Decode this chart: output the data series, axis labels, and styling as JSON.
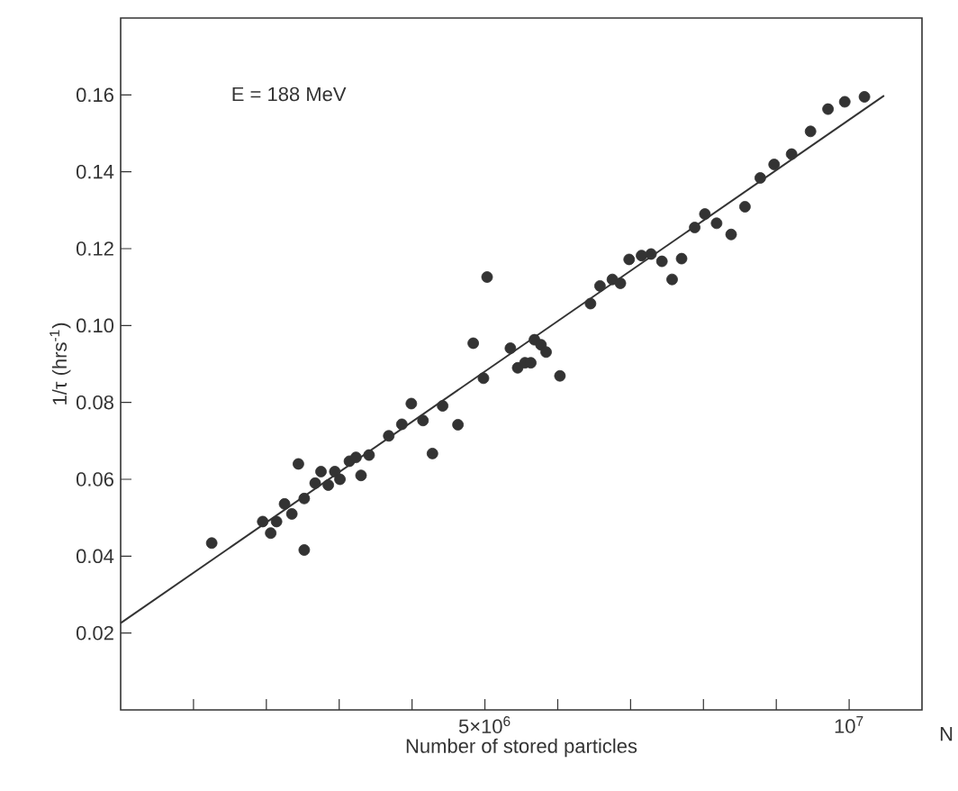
{
  "chart_data": {
    "type": "scatter",
    "xlabel": "Number of stored particles",
    "ylabel": "1/τ  (hrs$^{-1}$)",
    "annotations": [
      "E = 188 MeV",
      "N"
    ],
    "xlim": [
      0,
      11000000
    ],
    "ylim": [
      0,
      0.18
    ],
    "xticks": [
      {
        "value": 1000000,
        "label": null
      },
      {
        "value": 2000000,
        "label": null
      },
      {
        "value": 3000000,
        "label": null
      },
      {
        "value": 4000000,
        "label": null
      },
      {
        "value": 5000000,
        "label": "5×10$^{6}$"
      },
      {
        "value": 6000000,
        "label": null
      },
      {
        "value": 7000000,
        "label": null
      },
      {
        "value": 8000000,
        "label": null
      },
      {
        "value": 9000000,
        "label": null
      },
      {
        "value": 10000000,
        "label": "10$^{7}$"
      }
    ],
    "yticks": [
      0.02,
      0.04,
      0.06,
      0.08,
      {
        "value": 0.1,
        "label": "0.10"
      },
      0.12,
      0.14,
      0.16
    ],
    "grid": false,
    "legend": false,
    "series": [
      {
        "color": "#333333",
        "marker": "circle",
        "x": [
          1250000,
          1950000,
          2060000,
          2140000,
          2250000,
          2350000,
          2440000,
          2520000,
          2520000,
          2670000,
          2750000,
          2850000,
          2940000,
          3010000,
          3140000,
          3230000,
          3300000,
          3410000,
          3680000,
          3860000,
          3990000,
          4150000,
          4280000,
          4420000,
          4630000,
          4840000,
          4980000,
          5030000,
          5350000,
          5450000,
          5550000,
          5630000,
          5680000,
          5770000,
          5840000,
          6030000,
          6450000,
          6580000,
          6750000,
          6860000,
          6980000,
          7150000,
          7280000,
          7430000,
          7570000,
          7700000,
          7880000,
          8020000,
          8180000,
          8380000,
          8570000,
          8780000,
          8970000,
          9210000,
          9470000,
          9710000,
          9940000,
          10210000
        ],
        "values": [
          0.0434,
          0.049,
          0.046,
          0.049,
          0.0536,
          0.051,
          0.064,
          0.0416,
          0.055,
          0.059,
          0.062,
          0.0585,
          0.062,
          0.06,
          0.0647,
          0.0657,
          0.061,
          0.0663,
          0.0713,
          0.0743,
          0.0797,
          0.0753,
          0.0667,
          0.0791,
          0.0742,
          0.0954,
          0.0863,
          0.1126,
          0.0941,
          0.089,
          0.0903,
          0.0903,
          0.0963,
          0.095,
          0.0931,
          0.0869,
          0.1057,
          0.1103,
          0.112,
          0.111,
          0.1172,
          0.1182,
          0.1186,
          0.1167,
          0.112,
          0.1174,
          0.1255,
          0.129,
          0.1266,
          0.1237,
          0.1309,
          0.1384,
          0.1419,
          0.1446,
          0.1505,
          0.1563,
          0.1582,
          0.1595
        ]
      },
      {
        "type": "line",
        "color": "#333333",
        "marker": "none",
        "line_style": "solid",
        "x": [
          0,
          10480000
        ],
        "values": [
          0.0226,
          0.1598
        ]
      }
    ]
  }
}
